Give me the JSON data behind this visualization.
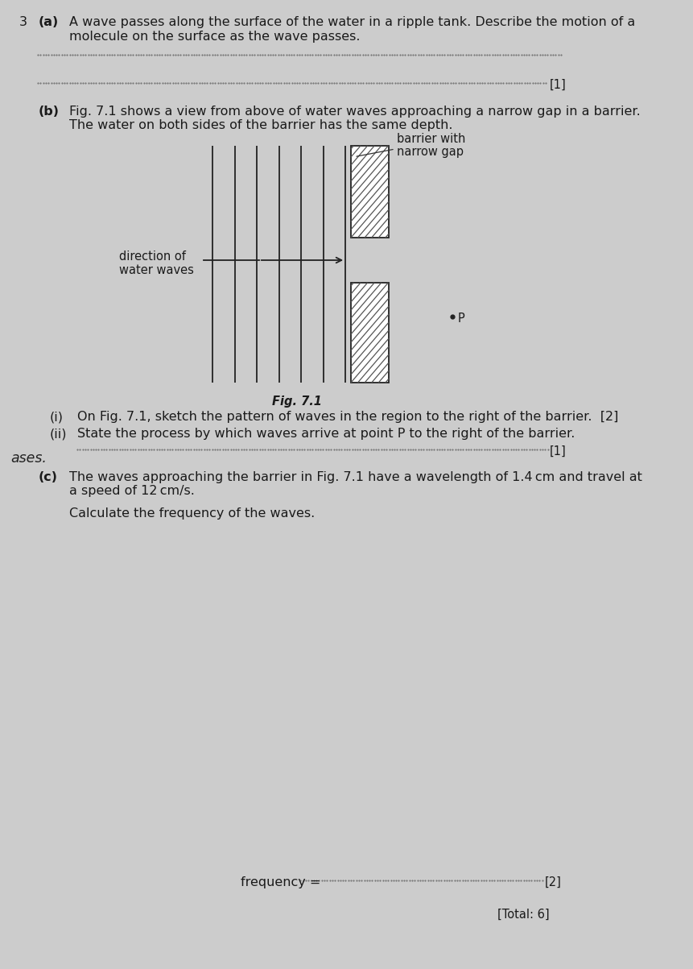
{
  "bg_color": "#cccccc",
  "text_color": "#1a1a1a",
  "question_number": "3",
  "part_a_label": "(a)",
  "part_a_text_1": "A wave passes along the surface of the water in a ripple tank. Describe the motion of a",
  "part_a_text_2": "molecule on the surface as the wave passes.",
  "mark1": "[1]",
  "part_b_label": "(b)",
  "part_b_text_1": "Fig. 7.1 shows a view from above of water waves approaching a narrow gap in a barrier.",
  "part_b_text_2": "The water on both sides of the barrier has the same depth.",
  "barrier_label_1": "barrier with",
  "barrier_label_2": "narrow gap",
  "direction_label_1": "direction of",
  "direction_label_2": "water waves",
  "fig_label": "Fig. 7.1",
  "point_P_label": "P",
  "part_bi_label": "(i)",
  "part_bi_text": "On Fig. 7.1, sketch the pattern of waves in the region to the right of the barrier.  [2]",
  "part_bii_label": "(ii)",
  "part_bii_text": "State the process by which waves arrive at point P to the right of the barrier.",
  "handwritten_text": "ases.",
  "mark2": "[1]",
  "part_c_label": "(c)",
  "part_c_text_1": "The waves approaching the barrier in Fig. 7.1 have a wavelength of 1.4 cm and travel at",
  "part_c_text_2": "a speed of 12 cm/s.",
  "part_c_text_3": "Calculate the frequency of the waves.",
  "frequency_label": "frequency =",
  "mark3": "[2]",
  "total_mark": "[Total: 6]",
  "font_size_main": 11.5,
  "font_size_small": 10.5
}
